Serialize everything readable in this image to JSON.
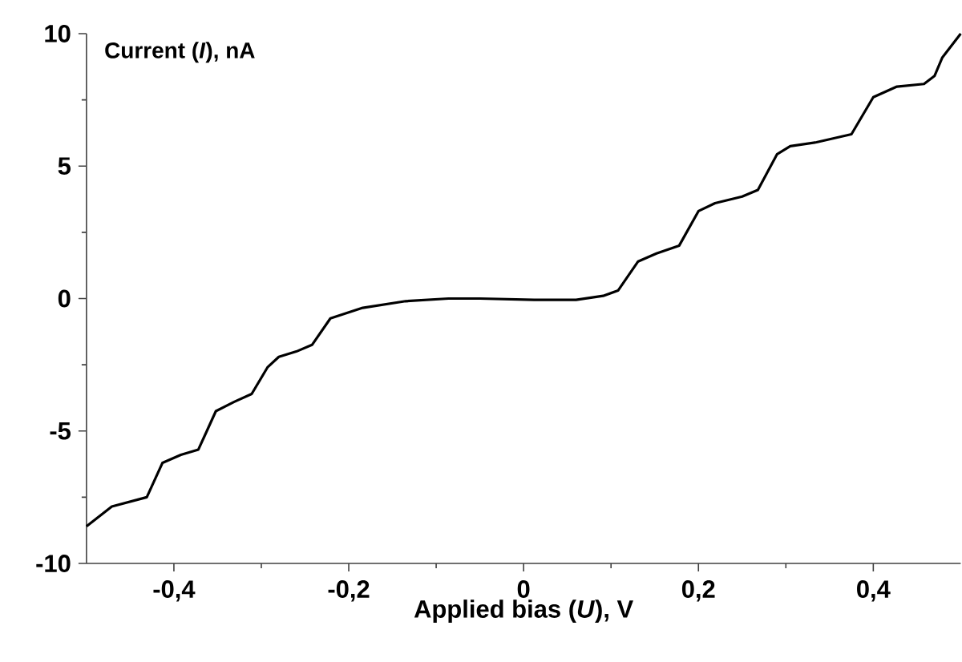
{
  "chart_data": {
    "type": "line",
    "xlabel": "Applied bias (*U*), V",
    "ylabel": "Current (*I*), nA",
    "xlim": [
      -0.5,
      0.5
    ],
    "ylim": [
      -10,
      10
    ],
    "xticks": [
      {
        "value": -0.4,
        "label": "-0,4"
      },
      {
        "value": -0.2,
        "label": "-0,2"
      },
      0,
      {
        "value": 0.2,
        "label": "0,2"
      },
      {
        "value": 0.4,
        "label": "0,4"
      }
    ],
    "yticks": [
      -10,
      -5,
      0,
      5,
      10
    ],
    "line_style": "solid",
    "series": [
      {
        "color": "#000000",
        "x": [
          -0.5,
          -0.471,
          -0.431,
          -0.413,
          -0.392,
          -0.372,
          -0.352,
          -0.331,
          -0.311,
          -0.293,
          -0.28,
          -0.26,
          -0.242,
          -0.221,
          -0.184,
          -0.135,
          -0.086,
          -0.05,
          0.012,
          0.06,
          0.091,
          0.108,
          0.131,
          0.152,
          0.178,
          0.2,
          0.219,
          0.25,
          0.268,
          0.29,
          0.305,
          0.335,
          0.375,
          0.4,
          0.427,
          0.458,
          0.47,
          0.479,
          0.5
        ],
        "values": [
          -8.6,
          -7.85,
          -7.5,
          -6.2,
          -5.9,
          -5.7,
          -4.25,
          -3.9,
          -3.6,
          -2.6,
          -2.2,
          -2.0,
          -1.75,
          -0.75,
          -0.35,
          -0.1,
          0,
          0,
          -0.05,
          -0.05,
          0.1,
          0.3,
          1.4,
          1.7,
          2.0,
          3.3,
          3.6,
          3.85,
          4.1,
          5.45,
          5.75,
          5.9,
          6.2,
          7.6,
          8.0,
          8.1,
          8.4,
          9.1,
          10.0
        ]
      }
    ]
  }
}
